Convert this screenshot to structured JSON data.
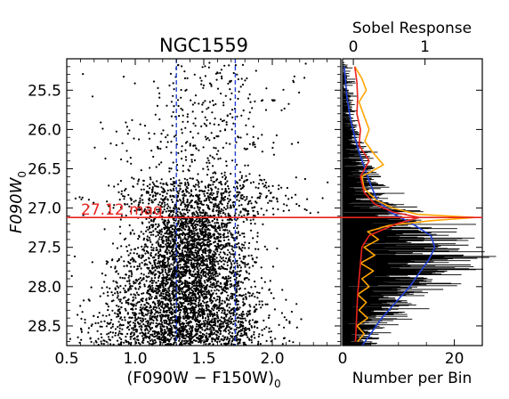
{
  "chart_data": [
    {
      "type": "scatter",
      "title": "NGC1559",
      "xlabel": "(F090W − F150W)",
      "xlabel_sub": "0",
      "ylabel": "F090W",
      "ylabel_sub": "0",
      "xlim": [
        0.5,
        2.5
      ],
      "ylim": [
        28.75,
        25.1
      ],
      "y_inverted": true,
      "x_ticks": [
        0.5,
        1.0,
        1.5,
        2.0
      ],
      "x_tick_labels": [
        "0.5",
        "1.0",
        "1.5",
        "2.0"
      ],
      "y_ticks": [
        25.5,
        26.0,
        26.5,
        27.0,
        27.5,
        28.0,
        28.5
      ],
      "y_tick_labels": [
        "25.5",
        "26.0",
        "26.5",
        "27.0",
        "27.5",
        "28.0",
        "28.5"
      ],
      "color_cuts": [
        1.3,
        1.73
      ],
      "trgb": {
        "value": 27.12,
        "label": "27.12 mag"
      },
      "colors": {
        "points": "#000000",
        "cuts": "#1f3fd6",
        "trgb": "#e8231f"
      }
    },
    {
      "type": "bar",
      "orientation": "horizontal",
      "xlabel": "Number per Bin",
      "x_ticks": [
        0,
        20
      ],
      "x_tick_labels": [
        "0",
        "20"
      ],
      "xlim": [
        0,
        25
      ],
      "top_axis": {
        "label": "Sobel Response",
        "ticks": [
          0,
          1
        ],
        "tick_labels": [
          "0",
          "1"
        ],
        "xlim": [
          -0.15,
          1.8
        ]
      },
      "smoothed_lf": {
        "mag": [
          25.2,
          25.6,
          25.9,
          26.1,
          26.3,
          26.5,
          26.7,
          26.9,
          27.05,
          27.2,
          27.35,
          27.5,
          27.65,
          27.8,
          28.0,
          28.2,
          28.4,
          28.6,
          28.75
        ],
        "count": [
          0.3,
          0.8,
          1.5,
          2.2,
          3.0,
          4.0,
          5.0,
          6.2,
          8.5,
          12.5,
          15.8,
          16.5,
          15.5,
          14.0,
          12.0,
          9.5,
          7.0,
          5.0,
          3.5
        ]
      },
      "sobel_response": {
        "mag": [
          25.2,
          25.35,
          25.5,
          25.65,
          25.8,
          26.0,
          26.15,
          26.3,
          26.45,
          26.6,
          26.75,
          26.9,
          27.0,
          27.08,
          27.12,
          27.16,
          27.22,
          27.3,
          27.4,
          27.5,
          27.6,
          27.7,
          27.8,
          27.9,
          28.0,
          28.1,
          28.2,
          28.3,
          28.4,
          28.5,
          28.6,
          28.7
        ],
        "response": [
          0.02,
          0.12,
          0.18,
          0.08,
          0.14,
          0.22,
          0.16,
          0.28,
          0.42,
          0.12,
          0.15,
          0.32,
          0.55,
          0.9,
          1.7,
          1.1,
          0.5,
          0.2,
          0.35,
          0.15,
          0.3,
          0.1,
          0.28,
          0.12,
          0.22,
          0.06,
          0.18,
          0.08,
          0.2,
          0.05,
          0.15,
          0.06
        ]
      },
      "weighted_response": {
        "mag": [
          25.2,
          25.4,
          25.6,
          25.8,
          26.0,
          26.2,
          26.4,
          26.6,
          26.8,
          26.95,
          27.05,
          27.12,
          27.2,
          27.35,
          27.5,
          27.7,
          27.9,
          28.1,
          28.3,
          28.5,
          28.7
        ],
        "response": [
          0.02,
          0.05,
          0.06,
          0.05,
          0.1,
          0.08,
          0.22,
          0.1,
          0.15,
          0.3,
          0.55,
          0.92,
          0.6,
          0.22,
          0.12,
          0.1,
          0.08,
          0.06,
          0.05,
          0.04,
          0.03
        ]
      },
      "colors": {
        "bars": "#000000",
        "smoothed_lf": "#1f3fd6",
        "sobel": "#ffa500",
        "weighted": "#e8231f"
      }
    }
  ]
}
